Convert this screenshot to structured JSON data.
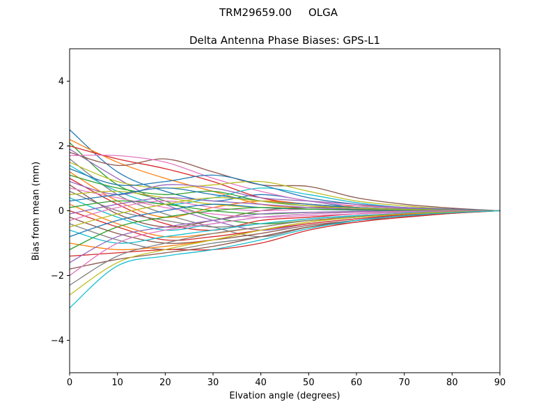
{
  "figure": {
    "title": "TRM29659.00     OLGA",
    "subtitle": "Delta Antenna Phase Biases: GPS-L1",
    "background": "#ffffff"
  },
  "chart_data": {
    "type": "line",
    "title": "Delta Antenna Phase Biases: GPS-L1",
    "xlabel": "Elvation angle (degrees)",
    "ylabel": "Bias from mean (mm)",
    "xlim": [
      0,
      90
    ],
    "ylim": [
      -5,
      5
    ],
    "grid": false,
    "legend": null,
    "xticks": [
      0,
      10,
      20,
      30,
      40,
      50,
      60,
      70,
      80,
      90
    ],
    "xtick_labels": [
      "0",
      "10",
      "20",
      "30",
      "40",
      "50",
      "60",
      "70",
      "80",
      "90"
    ],
    "yticks": [
      -4,
      -2,
      0,
      2,
      4
    ],
    "ytick_labels": [
      "−4",
      "−2",
      "0",
      "2",
      "4"
    ],
    "palette": [
      "#1f77b4",
      "#ff7f0e",
      "#2ca02c",
      "#d62728",
      "#9467bd",
      "#8c564b",
      "#e377c2",
      "#7f7f7f",
      "#bcbd22",
      "#17becf"
    ],
    "x": [
      0,
      10,
      20,
      30,
      40,
      50,
      60,
      70,
      80,
      90
    ],
    "series": [
      [
        2.5,
        1.2,
        0.6,
        0.3,
        0.5,
        0.3,
        0.1,
        0.05,
        0.02,
        0
      ],
      [
        2.2,
        1.5,
        1.0,
        0.6,
        0.2,
        0.1,
        0.15,
        0.1,
        0.05,
        0
      ],
      [
        2.1,
        0.8,
        0.3,
        -0.2,
        -0.4,
        -0.3,
        -0.2,
        -0.1,
        -0.05,
        0
      ],
      [
        2.0,
        1.6,
        1.3,
        0.9,
        0.4,
        0.2,
        0.1,
        0.05,
        0.03,
        0
      ],
      [
        1.9,
        1.0,
        0.2,
        -0.3,
        -0.6,
        -0.4,
        -0.25,
        -0.15,
        -0.05,
        0
      ],
      [
        1.8,
        1.4,
        1.6,
        1.2,
        0.8,
        0.75,
        0.4,
        0.2,
        0.08,
        0
      ],
      [
        1.7,
        1.7,
        1.5,
        1.0,
        0.6,
        0.3,
        0.15,
        0.08,
        0.03,
        0
      ],
      [
        1.6,
        0.5,
        -0.1,
        -0.5,
        -0.8,
        -0.5,
        -0.3,
        -0.2,
        -0.08,
        0
      ],
      [
        1.5,
        0.9,
        0.7,
        0.8,
        0.9,
        0.6,
        0.3,
        0.15,
        0.05,
        0
      ],
      [
        1.4,
        0.6,
        0.2,
        0.4,
        0.7,
        0.5,
        0.25,
        0.1,
        0.04,
        0
      ],
      [
        1.3,
        0.8,
        0.9,
        1.1,
        0.8,
        0.4,
        0.2,
        0.1,
        0.05,
        0
      ],
      [
        1.2,
        0.3,
        -0.2,
        0.1,
        0.3,
        0.2,
        0.1,
        0.05,
        0.02,
        0
      ],
      [
        1.1,
        0.7,
        0.5,
        0.6,
        0.3,
        0.15,
        0.1,
        0.05,
        0.02,
        0
      ],
      [
        1.0,
        0.2,
        -0.4,
        -0.6,
        -0.3,
        -0.2,
        -0.1,
        -0.05,
        -0.02,
        0
      ],
      [
        0.9,
        0.5,
        0.8,
        0.7,
        0.4,
        0.3,
        0.2,
        0.1,
        0.04,
        0
      ],
      [
        0.8,
        -0.1,
        -0.5,
        -0.3,
        0.0,
        0.1,
        0.05,
        0.03,
        0.01,
        0
      ],
      [
        0.7,
        0.4,
        0.1,
        -0.1,
        -0.2,
        -0.15,
        -0.1,
        -0.05,
        -0.02,
        0
      ],
      [
        0.6,
        0.0,
        -0.3,
        -0.5,
        -0.4,
        -0.25,
        -0.15,
        -0.08,
        -0.03,
        0
      ],
      [
        0.5,
        0.6,
        0.4,
        0.2,
        0.1,
        0.05,
        0.03,
        0.02,
        0.01,
        0
      ],
      [
        0.4,
        -0.2,
        -0.6,
        -0.4,
        -0.2,
        -0.1,
        -0.05,
        -0.03,
        -0.01,
        0
      ],
      [
        0.3,
        0.5,
        0.7,
        0.5,
        0.3,
        0.2,
        0.1,
        0.05,
        0.02,
        0
      ],
      [
        0.2,
        -0.4,
        -0.8,
        -0.7,
        -0.5,
        -0.3,
        -0.2,
        -0.1,
        -0.04,
        0
      ],
      [
        0.1,
        0.3,
        0.2,
        0.0,
        -0.1,
        -0.05,
        -0.03,
        -0.02,
        -0.01,
        0
      ],
      [
        0.0,
        -0.5,
        -0.9,
        -0.8,
        -0.6,
        -0.4,
        -0.25,
        -0.12,
        -0.05,
        0
      ],
      [
        -0.1,
        0.2,
        0.4,
        0.3,
        0.2,
        0.1,
        0.05,
        0.03,
        0.01,
        0
      ],
      [
        -0.2,
        -0.7,
        -1.0,
        -0.9,
        -0.7,
        -0.45,
        -0.3,
        -0.15,
        -0.06,
        0
      ],
      [
        -0.3,
        0.1,
        0.3,
        0.1,
        0.0,
        0.05,
        0.02,
        0.01,
        0.0,
        0
      ],
      [
        -0.4,
        -0.9,
        -1.2,
        -1.0,
        -0.8,
        -0.5,
        -0.35,
        -0.18,
        -0.07,
        0
      ],
      [
        -0.5,
        -0.1,
        0.2,
        0.4,
        0.3,
        0.15,
        0.08,
        0.04,
        0.02,
        0
      ],
      [
        -0.6,
        -1.0,
        -0.8,
        -0.6,
        -0.4,
        -0.25,
        -0.15,
        -0.08,
        -0.03,
        0
      ],
      [
        -0.8,
        -0.3,
        0.0,
        0.2,
        0.1,
        0.05,
        0.02,
        0.01,
        0.0,
        0
      ],
      [
        -1.0,
        -1.2,
        -1.1,
        -0.9,
        -0.6,
        -0.35,
        -0.2,
        -0.1,
        -0.04,
        0
      ],
      [
        -1.2,
        -0.5,
        -0.2,
        0.0,
        0.1,
        0.05,
        0.03,
        0.01,
        0.0,
        0
      ],
      [
        -1.4,
        -1.3,
        -1.2,
        -1.2,
        -1.0,
        -0.6,
        -0.35,
        -0.2,
        -0.08,
        0
      ],
      [
        -1.6,
        -0.8,
        -0.5,
        -0.3,
        -0.1,
        -0.05,
        -0.02,
        -0.01,
        0.0,
        0
      ],
      [
        -1.8,
        -1.5,
        -1.3,
        -1.1,
        -0.8,
        -0.5,
        -0.3,
        -0.15,
        -0.05,
        0
      ],
      [
        -2.0,
        -1.0,
        -0.6,
        -0.4,
        -0.2,
        -0.1,
        -0.05,
        -0.02,
        -0.01,
        0
      ],
      [
        -2.3,
        -1.4,
        -1.0,
        -0.7,
        -0.5,
        -0.3,
        -0.18,
        -0.09,
        -0.03,
        0
      ],
      [
        -2.6,
        -1.6,
        -1.2,
        -0.9,
        -0.6,
        -0.35,
        -0.2,
        -0.1,
        -0.04,
        0
      ],
      [
        -3.0,
        -1.7,
        -1.4,
        -1.2,
        -0.9,
        -0.55,
        -0.3,
        -0.15,
        -0.06,
        0
      ]
    ]
  }
}
